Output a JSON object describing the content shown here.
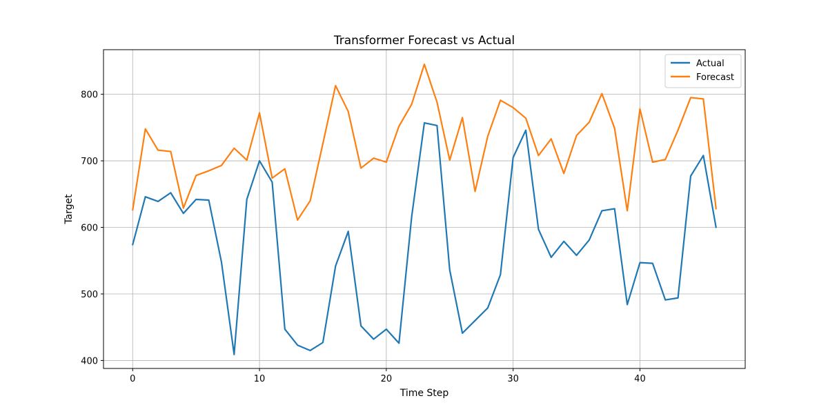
{
  "chart_data": {
    "type": "line",
    "title": "Transformer Forecast vs Actual",
    "xlabel": "Time Step",
    "ylabel": "Target",
    "xlim": [
      -2.3,
      48.3
    ],
    "ylim": [
      388,
      867
    ],
    "xticks": [
      0,
      10,
      20,
      30,
      40
    ],
    "yticks": [
      400,
      500,
      600,
      700,
      800
    ],
    "grid": true,
    "legend_position": "top-right",
    "x": [
      0,
      1,
      2,
      3,
      4,
      5,
      6,
      7,
      8,
      9,
      10,
      11,
      12,
      13,
      14,
      15,
      16,
      17,
      18,
      19,
      20,
      21,
      22,
      23,
      24,
      25,
      26,
      27,
      28,
      29,
      30,
      31,
      32,
      33,
      34,
      35,
      36,
      37,
      38,
      39,
      40,
      41,
      42,
      43,
      44,
      45,
      46
    ],
    "series": [
      {
        "name": "Actual",
        "color": "#1f77b4",
        "values": [
          574,
          646,
          639,
          652,
          621,
          642,
          641,
          548,
          409,
          642,
          700,
          668,
          447,
          423,
          415,
          427,
          542,
          594,
          452,
          432,
          447,
          426,
          616,
          757,
          753,
          536,
          441,
          460,
          479,
          529,
          705,
          746,
          597,
          555,
          579,
          558,
          581,
          625,
          628,
          484,
          547,
          546,
          491,
          494,
          677,
          708,
          600
        ]
      },
      {
        "name": "Forecast",
        "color": "#ff7f0e",
        "values": [
          626,
          748,
          716,
          714,
          629,
          678,
          685,
          693,
          719,
          701,
          772,
          674,
          688,
          611,
          640,
          726,
          813,
          774,
          689,
          704,
          698,
          752,
          785,
          845,
          788,
          701,
          765,
          654,
          737,
          791,
          780,
          764,
          708,
          733,
          681,
          738,
          758,
          801,
          749,
          625,
          778,
          698,
          702,
          746,
          795,
          793,
          628
        ]
      }
    ]
  }
}
